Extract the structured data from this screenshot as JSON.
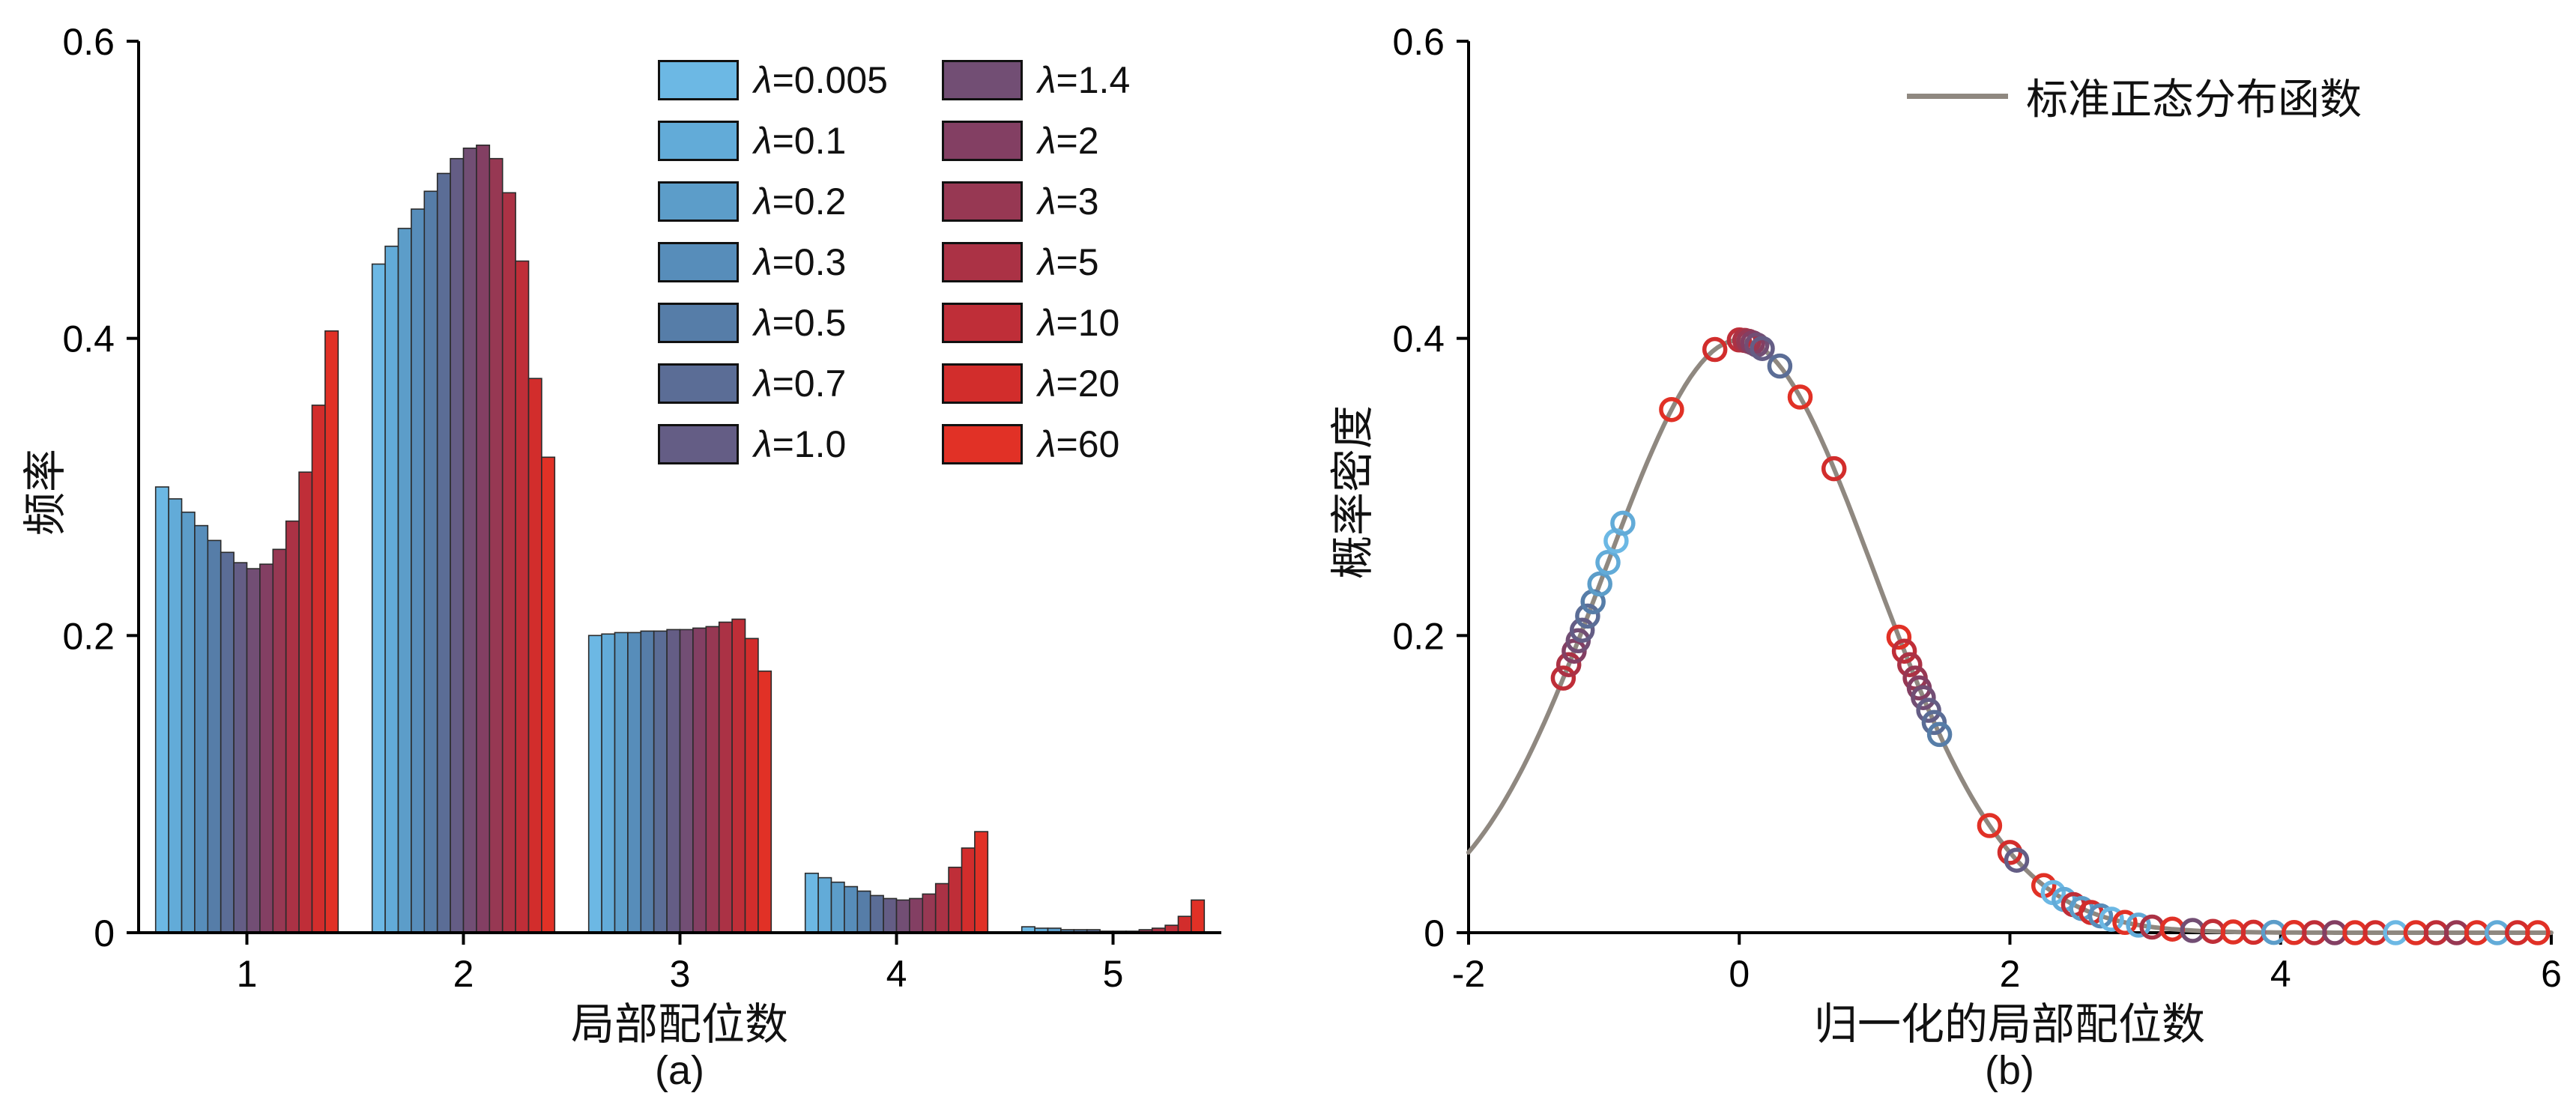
{
  "figure": {
    "background": "#ffffff",
    "axis_color": "#000000"
  },
  "chart_data": [
    {
      "type": "bar",
      "panel": "a",
      "caption": "(a)",
      "xlabel": "局部配位数",
      "ylabel": "频率",
      "categories": [
        1,
        2,
        3,
        4,
        5
      ],
      "xlim": [
        0.5,
        5.5
      ],
      "ylim": [
        0,
        0.6
      ],
      "xticks": [
        "1",
        "2",
        "3",
        "4",
        "5"
      ],
      "xtick_values": [
        1,
        2,
        3,
        4,
        5
      ],
      "yticks": [
        "0",
        "0.2",
        "0.4",
        "0.6"
      ],
      "ytick_values": [
        0,
        0.2,
        0.4,
        0.6
      ],
      "bar_edge_color": "#2b2b2b",
      "legend_position": "upper center, two columns",
      "series": [
        {
          "name": "λ=0.005",
          "color": "#6cb8e4",
          "values": [
            0.3,
            0.45,
            0.2,
            0.04,
            0.004
          ]
        },
        {
          "name": "λ=0.1",
          "color": "#62abd8",
          "values": [
            0.292,
            0.462,
            0.201,
            0.037,
            0.003
          ]
        },
        {
          "name": "λ=0.2",
          "color": "#5c9dc9",
          "values": [
            0.283,
            0.474,
            0.202,
            0.034,
            0.003
          ]
        },
        {
          "name": "λ=0.3",
          "color": "#578dba",
          "values": [
            0.274,
            0.487,
            0.202,
            0.031,
            0.002
          ]
        },
        {
          "name": "λ=0.5",
          "color": "#567da8",
          "values": [
            0.264,
            0.499,
            0.203,
            0.028,
            0.002
          ]
        },
        {
          "name": "λ=0.7",
          "color": "#5b6d96",
          "values": [
            0.256,
            0.511,
            0.203,
            0.025,
            0.002
          ]
        },
        {
          "name": "λ=1.0",
          "color": "#645d85",
          "values": [
            0.249,
            0.521,
            0.204,
            0.023,
            0.001
          ]
        },
        {
          "name": "λ=1.4",
          "color": "#724e74",
          "values": [
            0.245,
            0.528,
            0.204,
            0.022,
            0.001
          ]
        },
        {
          "name": "λ=2",
          "color": "#833f63",
          "values": [
            0.248,
            0.53,
            0.205,
            0.023,
            0.001
          ]
        },
        {
          "name": "λ=3",
          "color": "#973853",
          "values": [
            0.258,
            0.521,
            0.206,
            0.026,
            0.002
          ]
        },
        {
          "name": "λ=5",
          "color": "#ab3245",
          "values": [
            0.277,
            0.498,
            0.209,
            0.033,
            0.003
          ]
        },
        {
          "name": "λ=10",
          "color": "#bf2e38",
          "values": [
            0.31,
            0.452,
            0.211,
            0.044,
            0.005
          ]
        },
        {
          "name": "λ=20",
          "color": "#d22d2c",
          "values": [
            0.355,
            0.373,
            0.198,
            0.057,
            0.011
          ]
        },
        {
          "name": "λ=60",
          "color": "#e13126",
          "values": [
            0.405,
            0.32,
            0.176,
            0.068,
            0.022
          ]
        }
      ]
    },
    {
      "type": "line",
      "panel": "b",
      "caption": "(b)",
      "xlabel": "归一化的局部配位数",
      "ylabel": "概率密度",
      "xlim": [
        -2,
        6
      ],
      "ylim": [
        0,
        0.6
      ],
      "xticks": [
        "-2",
        "0",
        "2",
        "4",
        "6"
      ],
      "xtick_values": [
        -2,
        0,
        2,
        4,
        6
      ],
      "yticks": [
        "0",
        "0.2",
        "0.4",
        "0.6"
      ],
      "ytick_values": [
        0,
        0.2,
        0.4,
        0.6
      ],
      "legend": {
        "label": "标准正态分布函数",
        "color": "#8f8880",
        "position": "upper right"
      },
      "curve": {
        "name": "标准正态分布函数",
        "color": "#8f8880",
        "formula": "y = exp(-x^2/2)/sqrt(2*pi)"
      },
      "marker": {
        "shape": "open-circle",
        "radius_px": 14,
        "stroke_px": 5.5
      },
      "points": [
        {
          "x": -1.3,
          "y": 0.1714,
          "series": "λ=10"
        },
        {
          "x": -1.26,
          "y": 0.1804,
          "series": "λ=5"
        },
        {
          "x": -1.22,
          "y": 0.1895,
          "series": "λ=2"
        },
        {
          "x": -1.19,
          "y": 0.1965,
          "series": "λ=1.4"
        },
        {
          "x": -1.16,
          "y": 0.2036,
          "series": "λ=1.0"
        },
        {
          "x": -1.12,
          "y": 0.2131,
          "series": "λ=0.7"
        },
        {
          "x": -1.08,
          "y": 0.2227,
          "series": "λ=0.5"
        },
        {
          "x": -1.03,
          "y": 0.2347,
          "series": "λ=0.2"
        },
        {
          "x": -0.97,
          "y": 0.2492,
          "series": "λ=0.1"
        },
        {
          "x": -0.91,
          "y": 0.2637,
          "series": "λ=0.005"
        },
        {
          "x": -0.86,
          "y": 0.2756,
          "series": "λ=0.1"
        },
        {
          "x": -0.5,
          "y": 0.3521,
          "series": "λ=60"
        },
        {
          "x": -0.18,
          "y": 0.3925,
          "series": "λ=20"
        },
        {
          "x": 0.0,
          "y": 0.3989,
          "series": "λ=10"
        },
        {
          "x": 0.04,
          "y": 0.3986,
          "series": "λ=5"
        },
        {
          "x": 0.07,
          "y": 0.398,
          "series": "λ=3"
        },
        {
          "x": 0.1,
          "y": 0.397,
          "series": "λ=2"
        },
        {
          "x": 0.13,
          "y": 0.3956,
          "series": "λ=1.4"
        },
        {
          "x": 0.17,
          "y": 0.3932,
          "series": "λ=1.0"
        },
        {
          "x": 0.3,
          "y": 0.3814,
          "series": "λ=0.7"
        },
        {
          "x": 0.45,
          "y": 0.3605,
          "series": "λ=60"
        },
        {
          "x": 0.7,
          "y": 0.3123,
          "series": "λ=20"
        },
        {
          "x": 1.18,
          "y": 0.1989,
          "series": "λ=60"
        },
        {
          "x": 1.22,
          "y": 0.1895,
          "series": "λ=10"
        },
        {
          "x": 1.26,
          "y": 0.1804,
          "series": "λ=5"
        },
        {
          "x": 1.3,
          "y": 0.1714,
          "series": "λ=3"
        },
        {
          "x": 1.33,
          "y": 0.1647,
          "series": "λ=2"
        },
        {
          "x": 1.36,
          "y": 0.1582,
          "series": "λ=1.4"
        },
        {
          "x": 1.4,
          "y": 0.1497,
          "series": "λ=1.0"
        },
        {
          "x": 1.44,
          "y": 0.1415,
          "series": "λ=0.7"
        },
        {
          "x": 1.48,
          "y": 0.1334,
          "series": "λ=0.5"
        },
        {
          "x": 1.85,
          "y": 0.0721,
          "series": "λ=60"
        },
        {
          "x": 2.0,
          "y": 0.054,
          "series": "λ=20"
        },
        {
          "x": 2.05,
          "y": 0.0488,
          "series": "λ=1.0"
        },
        {
          "x": 2.25,
          "y": 0.0317,
          "series": "λ=60"
        },
        {
          "x": 2.32,
          "y": 0.027,
          "series": "λ=0.005"
        },
        {
          "x": 2.4,
          "y": 0.0224,
          "series": "λ=0.1"
        },
        {
          "x": 2.47,
          "y": 0.0189,
          "series": "λ=10"
        },
        {
          "x": 2.53,
          "y": 0.0163,
          "series": "λ=0.2"
        },
        {
          "x": 2.6,
          "y": 0.0136,
          "series": "λ=20"
        },
        {
          "x": 2.67,
          "y": 0.0113,
          "series": "λ=0.3"
        },
        {
          "x": 2.75,
          "y": 0.0091,
          "series": "λ=0.005"
        },
        {
          "x": 2.85,
          "y": 0.0069,
          "series": "λ=60"
        },
        {
          "x": 2.95,
          "y": 0.0051,
          "series": "λ=0.1"
        },
        {
          "x": 3.05,
          "y": 0.0038,
          "series": "λ=5"
        },
        {
          "x": 3.2,
          "y": 0.0024,
          "series": "λ=60"
        },
        {
          "x": 3.35,
          "y": 0.0015,
          "series": "λ=1.4"
        },
        {
          "x": 3.5,
          "y": 0.0009,
          "series": "λ=10"
        },
        {
          "x": 3.65,
          "y": 0.0005,
          "series": "λ=60"
        },
        {
          "x": 3.8,
          "y": 0.0003,
          "series": "λ=20"
        },
        {
          "x": 3.95,
          "y": 0.0002,
          "series": "λ=0.2"
        },
        {
          "x": 4.1,
          "y": 0.0001,
          "series": "λ=60"
        },
        {
          "x": 4.25,
          "y": 0.0,
          "series": "λ=10"
        },
        {
          "x": 4.4,
          "y": 0.0,
          "series": "λ=2"
        },
        {
          "x": 4.55,
          "y": 0.0,
          "series": "λ=60"
        },
        {
          "x": 4.7,
          "y": 0.0,
          "series": "λ=20"
        },
        {
          "x": 4.85,
          "y": 0.0,
          "series": "λ=0.005"
        },
        {
          "x": 5.0,
          "y": 0.0,
          "series": "λ=60"
        },
        {
          "x": 5.15,
          "y": 0.0,
          "series": "λ=10"
        },
        {
          "x": 5.3,
          "y": 0.0,
          "series": "λ=3"
        },
        {
          "x": 5.45,
          "y": 0.0,
          "series": "λ=60"
        },
        {
          "x": 5.6,
          "y": 0.0,
          "series": "λ=0.1"
        },
        {
          "x": 5.75,
          "y": 0.0,
          "series": "λ=20"
        },
        {
          "x": 5.9,
          "y": 0.0,
          "series": "λ=60"
        }
      ]
    }
  ]
}
